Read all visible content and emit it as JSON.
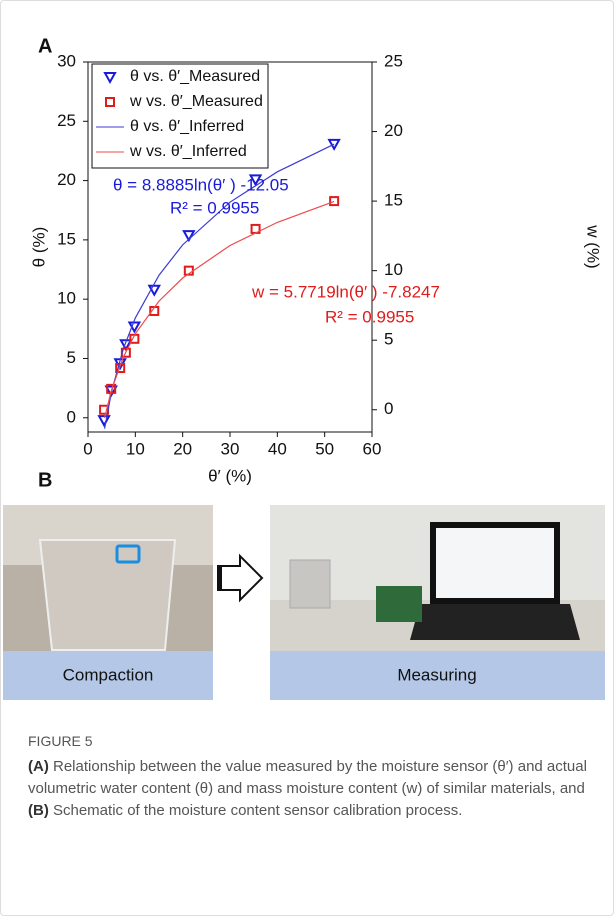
{
  "panel_a_label": "A",
  "chart_data": {
    "type": "scatter",
    "xlabel": "θ′ (%)",
    "ylabel": "θ (%)",
    "y2label": "w (%)",
    "xlim": [
      0,
      60
    ],
    "xticks": [
      0,
      10,
      20,
      30,
      40,
      50,
      60
    ],
    "ylim": [
      -1.2,
      30
    ],
    "yticks": [
      0,
      5,
      10,
      15,
      20,
      25,
      30
    ],
    "y2lim": [
      -1.6,
      25
    ],
    "y2ticks": [
      0,
      5,
      10,
      15,
      20,
      25
    ],
    "legend": "top-left",
    "series": [
      {
        "name": "θ vs. θ′_Measured",
        "color": "#1a1adb",
        "marker": "triangle-down",
        "x": [
          3.4,
          4.9,
          6.8,
          8,
          9.8,
          14,
          21.3,
          35.4,
          52
        ],
        "values": [
          -0.2,
          2.3,
          4.6,
          6.2,
          7.7,
          10.8,
          15.4,
          20.1,
          23.1
        ]
      },
      {
        "name": "w vs. θ′_Measured",
        "color": "#e01b1b",
        "marker": "square",
        "axis": "y2",
        "x": [
          3.4,
          4.9,
          6.8,
          8,
          9.8,
          14,
          21.3,
          35.4,
          52
        ],
        "values": [
          0,
          1.5,
          3.0,
          4.1,
          5.1,
          7.1,
          10.0,
          13.0,
          15.0
        ]
      },
      {
        "name": "θ vs. θ′_Inferred",
        "color": "#3b3bd6",
        "marker": "line",
        "x": [
          3.5,
          5,
          7.5,
          10,
          15,
          20,
          30,
          40,
          52
        ],
        "values": [
          -0.92,
          2.26,
          5.86,
          8.42,
          12.02,
          14.58,
          18.18,
          20.74,
          23.07
        ]
      },
      {
        "name": "w vs. θ′_Inferred",
        "color": "#f04a4a",
        "marker": "line",
        "axis": "y2",
        "x": [
          3.5,
          5,
          7.5,
          10,
          15,
          20,
          30,
          40,
          52
        ],
        "values": [
          -0.59,
          1.46,
          3.81,
          5.47,
          7.81,
          9.47,
          11.81,
          13.47,
          14.98
        ]
      }
    ],
    "annotations": [
      {
        "text": "θ = 8.8885ln(θ′ ) -12.05",
        "color": "#1a1adb"
      },
      {
        "text": "R² = 0.9955",
        "color": "#1a1adb"
      },
      {
        "text": "w = 5.7719ln(θ′ ) -7.8247",
        "color": "#e01b1b"
      },
      {
        "text": "R² = 0.9955",
        "color": "#e01b1b"
      }
    ]
  },
  "panel_b": {
    "label": "B",
    "captions": [
      "Compaction",
      "Measuring"
    ]
  },
  "caption": {
    "figure": "FIGURE 5",
    "parts": [
      "(A)",
      " Relationship between the value measured by the moisture sensor (θ′) and actual volumetric water content (θ) and mass moisture content (w) of similar materials, and ",
      "(B)",
      " Schematic of the moisture content sensor calibration process."
    ]
  }
}
